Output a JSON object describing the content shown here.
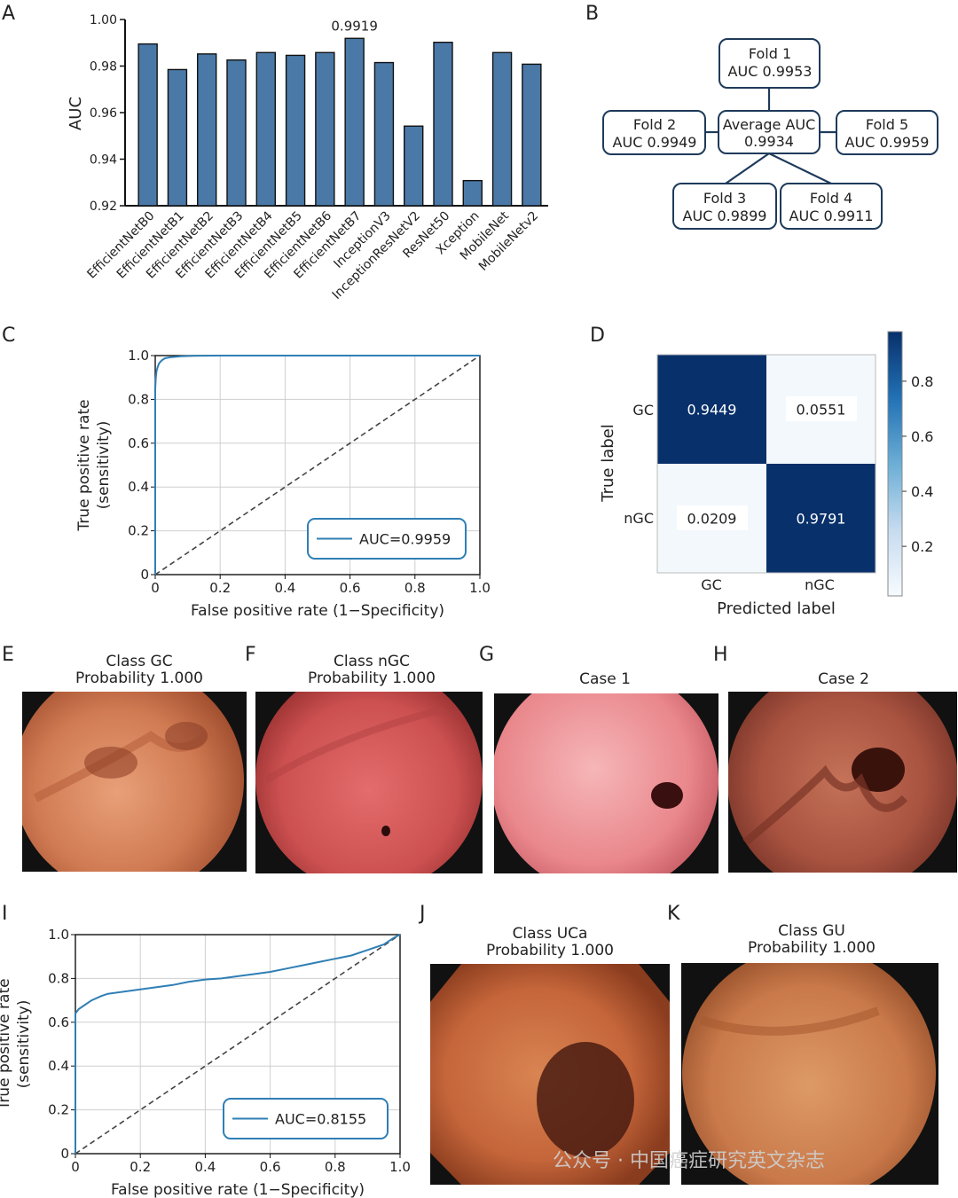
{
  "panel_letters": [
    "A",
    "B",
    "C",
    "D",
    "E",
    "F",
    "G",
    "H",
    "I",
    "J",
    "K"
  ],
  "chart_data": [
    {
      "id": "A",
      "type": "bar",
      "ylabel": "AUC",
      "ylim": [
        0.92,
        1.0
      ],
      "yticks": [
        "0.92",
        "0.94",
        "0.96",
        "0.98",
        "1.00"
      ],
      "categories": [
        "EfficientNetB0",
        "EfficientNetB1",
        "EfficientNetB2",
        "EfficientNetB3",
        "EfficientNetB4",
        "EfficientNetB5",
        "EfficientNetB6",
        "EfficientNetB7",
        "InceptionV3",
        "InceptionResNetV2",
        "ResNet50",
        "Xception",
        "MobileNet",
        "MobileNetv2"
      ],
      "values": [
        0.9895,
        0.9785,
        0.9852,
        0.9826,
        0.9858,
        0.9846,
        0.9858,
        0.9919,
        0.9815,
        0.9542,
        0.9902,
        0.9308,
        0.9858,
        0.9808
      ],
      "annotations": [
        {
          "category": "EfficientNetB7",
          "text": "0.9919"
        }
      ],
      "bar_color": "#4a79a8"
    },
    {
      "id": "C",
      "type": "line",
      "xlabel": "False positive rate (1−Specificity)",
      "ylabel_lines": [
        "True positive rate",
        "(sensitivity)"
      ],
      "xlim": [
        0,
        1
      ],
      "ylim": [
        0,
        1
      ],
      "xticks": [
        "0",
        "0.2",
        "0.4",
        "0.6",
        "0.8",
        "1.0"
      ],
      "yticks": [
        "0",
        "0.2",
        "0.4",
        "0.6",
        "0.8",
        "1.0"
      ],
      "grid": true,
      "legend_position": "bottom-right",
      "series": [
        {
          "name": "AUC=0.9959",
          "color": "#2f7fb5",
          "x": [
            0,
            0,
            0.002,
            0.004,
            0.008,
            0.012,
            0.02,
            0.03,
            0.05,
            0.08,
            0.12,
            0.2,
            0.4,
            1.0
          ],
          "y": [
            0,
            0.85,
            0.9,
            0.93,
            0.95,
            0.965,
            0.978,
            0.988,
            0.993,
            0.997,
            0.999,
            1.0,
            1.0,
            1.0
          ]
        }
      ],
      "reference_line": true
    },
    {
      "id": "D",
      "type": "heatmap",
      "xlabel": "Predicted label",
      "ylabel": "True label",
      "row_labels": [
        "GC",
        "nGC"
      ],
      "col_labels": [
        "GC",
        "nGC"
      ],
      "cells": [
        [
          "0.9449",
          "0.0551"
        ],
        [
          "0.0209",
          "0.9791"
        ]
      ],
      "values": [
        [
          0.9449,
          0.0551
        ],
        [
          0.0209,
          0.9791
        ]
      ],
      "colorbar_ticks": [
        "0.8",
        "0.6",
        "0.4",
        "0.2"
      ],
      "colorbar_tick_values": [
        0.8,
        0.6,
        0.4,
        0.2
      ],
      "colorbar_range": [
        0.02,
        0.98
      ]
    },
    {
      "id": "I",
      "type": "line",
      "xlabel": "False positive rate (1−Specificity)",
      "ylabel_lines": [
        "True positive rate",
        "(sensitivity)"
      ],
      "xlim": [
        0,
        1
      ],
      "ylim": [
        0,
        1
      ],
      "xticks": [
        "0",
        "0.2",
        "0.4",
        "0.6",
        "0.8",
        "1.0"
      ],
      "yticks": [
        "0",
        "0.2",
        "0.4",
        "0.6",
        "0.8",
        "1.0"
      ],
      "grid": true,
      "legend_position": "bottom-right",
      "series": [
        {
          "name": "AUC=0.8155",
          "color": "#2f7fb5",
          "x": [
            0,
            0,
            0.01,
            0.03,
            0.05,
            0.08,
            0.1,
            0.15,
            0.2,
            0.25,
            0.3,
            0.35,
            0.4,
            0.45,
            0.5,
            0.55,
            0.6,
            0.65,
            0.7,
            0.75,
            0.8,
            0.85,
            0.9,
            0.95,
            0.98,
            1.0
          ],
          "y": [
            0,
            0.64,
            0.66,
            0.68,
            0.7,
            0.72,
            0.73,
            0.74,
            0.75,
            0.76,
            0.77,
            0.785,
            0.795,
            0.8,
            0.81,
            0.82,
            0.83,
            0.845,
            0.86,
            0.875,
            0.89,
            0.905,
            0.93,
            0.955,
            0.985,
            1.0
          ]
        }
      ],
      "reference_line": true
    }
  ],
  "diagram_B": {
    "center": {
      "line1": "Average AUC",
      "line2": "0.9934"
    },
    "folds": [
      {
        "line1": "Fold 1",
        "line2": "AUC 0.9953"
      },
      {
        "line1": "Fold 2",
        "line2": "AUC 0.9949"
      },
      {
        "line1": "Fold 3",
        "line2": "AUC 0.9899"
      },
      {
        "line1": "Fold 4",
        "line2": "AUC 0.9911"
      },
      {
        "line1": "Fold 5",
        "line2": "AUC 0.9959"
      }
    ]
  },
  "images": {
    "E": {
      "title1": "Class GC",
      "title2": "Probability 1.000"
    },
    "F": {
      "title1": "Class nGC",
      "title2": "Probability 1.000"
    },
    "G": {
      "title1": "Case 1"
    },
    "H": {
      "title1": "Case 2"
    },
    "J": {
      "title1": "Class UCa",
      "title2": "Probability 1.000"
    },
    "K": {
      "title1": "Class GU",
      "title2": "Probability 1.000"
    }
  },
  "watermark": "公众号 · 中国癌症研究英文杂志"
}
